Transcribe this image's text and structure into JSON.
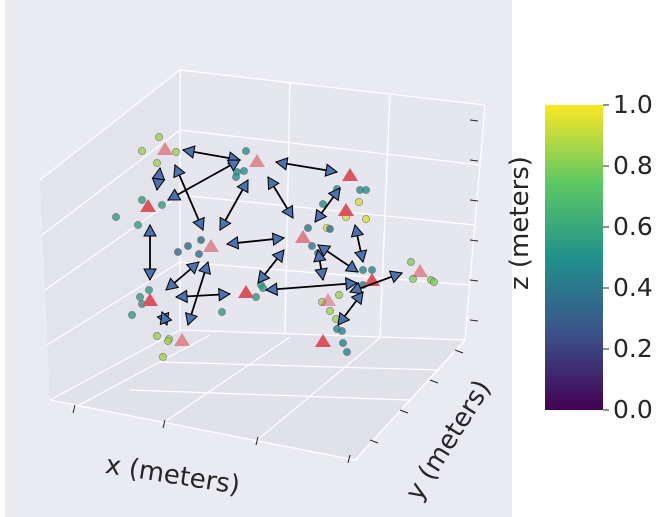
{
  "chart_data": {
    "type": "scatter3d",
    "xlabel": "x (meters)",
    "ylabel": "y (meters)",
    "zlabel": "z (meters)",
    "grid": true,
    "colorbar": {
      "colormap": "viridis",
      "range": [
        0.0,
        1.0
      ],
      "ticks": [
        "0.0",
        "0.2",
        "0.4",
        "0.6",
        "0.8",
        "1.0"
      ],
      "colors": [
        "#440154",
        "#3b528b",
        "#21918c",
        "#5ec962",
        "#fde725"
      ]
    },
    "marker_colors": {
      "triangle": "#d9545c",
      "arrow": "#4c72b0",
      "background": "#eaeaf2"
    }
  }
}
